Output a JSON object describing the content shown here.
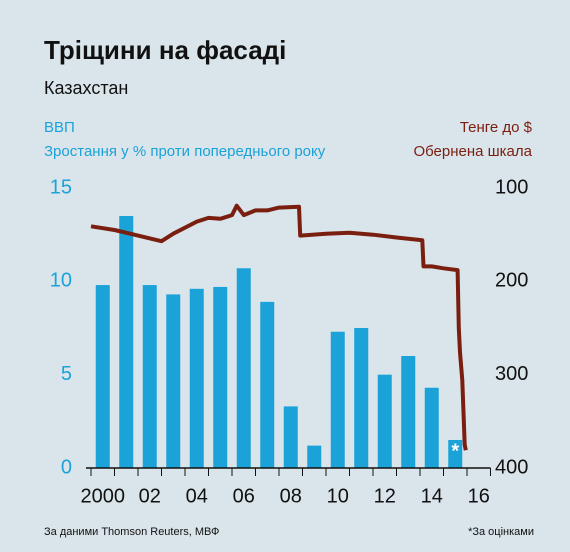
{
  "chart_data": {
    "type": "bar+line",
    "title": "Тріщини на фасаді",
    "subtitle": "Казахстан",
    "ylabel": "Зростання у % проти попереднього року",
    "y2label": "Обернена шкала",
    "source": "За даними Thomson Reuters, МВФ",
    "footnote": "*За оцінками",
    "bar_annotation": "*",
    "categories": [
      "2000",
      null,
      "02",
      null,
      "04",
      null,
      "06",
      null,
      "08",
      null,
      "10",
      null,
      "12",
      null,
      "14",
      null,
      "16"
    ],
    "xlim": [
      2000,
      2017
    ],
    "series": [
      {
        "name": "ВВП",
        "color": "#1ba2d8",
        "values": [
          9.8,
          13.5,
          9.8,
          9.3,
          9.6,
          9.7,
          10.7,
          8.9,
          3.3,
          1.2,
          7.3,
          7.5,
          5.0,
          6.0,
          4.3,
          1.5,
          null
        ]
      },
      {
        "name": "Тенге до $",
        "color": "#7a1e10",
        "axis": "y2",
        "x": [
          2000.0,
          2001.0,
          2002.0,
          2003.0,
          2003.5,
          2004.5,
          2005.0,
          2005.5,
          2006.0,
          2006.2,
          2006.5,
          2007.0,
          2007.5,
          2008.0,
          2008.85,
          2008.9,
          2010.0,
          2011.0,
          2012.0,
          2013.0,
          2014.1,
          2014.15,
          2014.5,
          2015.0,
          2015.6,
          2015.65,
          2015.7,
          2015.8,
          2015.9,
          2015.95
        ],
        "values": [
          141,
          145,
          151,
          157,
          149,
          136,
          132,
          133,
          129,
          119,
          129,
          124,
          124,
          121,
          120,
          151,
          149,
          148,
          150,
          153,
          156,
          184,
          184,
          186,
          188,
          250,
          276,
          306,
          375,
          381
        ]
      }
    ],
    "ylim": [
      0,
      15
    ],
    "yticks": [
      0,
      5,
      10,
      15
    ],
    "y2lim": [
      100,
      400
    ],
    "y2ticks": [
      100,
      200,
      300,
      400
    ],
    "y2_inverted": true
  }
}
